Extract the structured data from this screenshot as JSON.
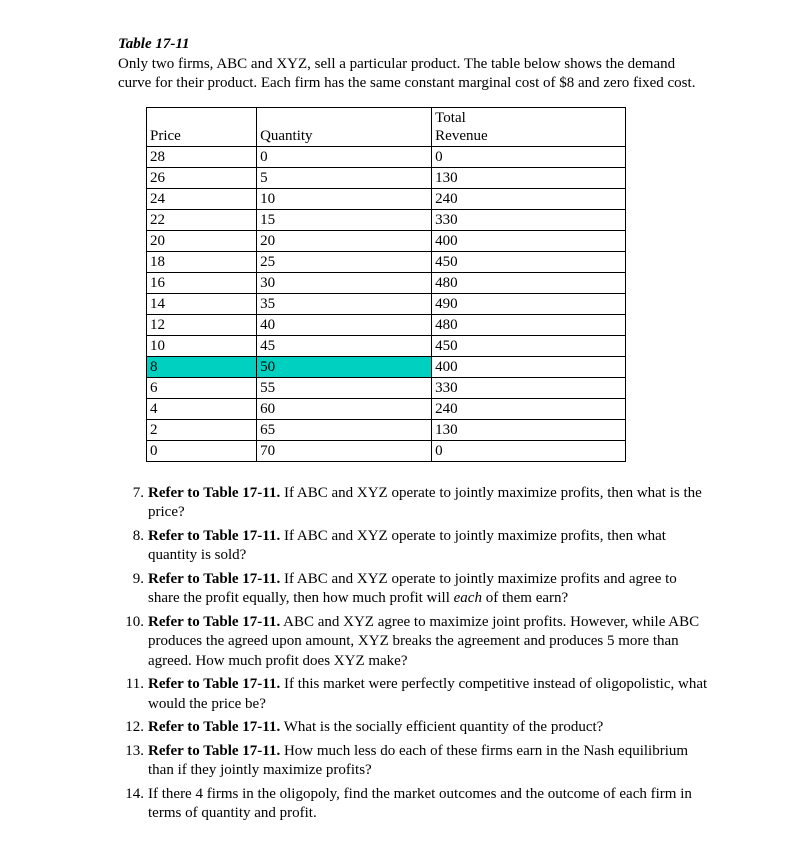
{
  "title": "Table 17-11",
  "intro": "Only two firms, ABC and XYZ, sell a particular product. The table below shows the demand curve for their product. Each firm has the same constant marginal cost of $8 and zero fixed cost.",
  "table": {
    "columns": [
      "Price",
      "Quantity",
      "Total Revenue"
    ],
    "header_price": "Price",
    "header_qty": "Quantity",
    "header_rev_line1": "Total",
    "header_rev_line2": "Revenue",
    "rows": [
      {
        "price": "28",
        "qty": "0",
        "rev": "0",
        "hl": false
      },
      {
        "price": "26",
        "qty": "5",
        "rev": "130",
        "hl": false
      },
      {
        "price": "24",
        "qty": "10",
        "rev": "240",
        "hl": false
      },
      {
        "price": "22",
        "qty": "15",
        "rev": "330",
        "hl": false
      },
      {
        "price": "20",
        "qty": "20",
        "rev": "400",
        "hl": false
      },
      {
        "price": "18",
        "qty": "25",
        "rev": "450",
        "hl": false
      },
      {
        "price": "16",
        "qty": "30",
        "rev": "480",
        "hl": false
      },
      {
        "price": "14",
        "qty": "35",
        "rev": "490",
        "hl": false
      },
      {
        "price": "12",
        "qty": "40",
        "rev": "480",
        "hl": false
      },
      {
        "price": "10",
        "qty": "45",
        "rev": "450",
        "hl": false
      },
      {
        "price": "8",
        "qty": "50",
        "rev": "400",
        "hl": true
      },
      {
        "price": "6",
        "qty": "55",
        "rev": "330",
        "hl": false
      },
      {
        "price": "4",
        "qty": "60",
        "rev": "240",
        "hl": false
      },
      {
        "price": "2",
        "qty": "65",
        "rev": "130",
        "hl": false
      },
      {
        "price": "0",
        "qty": "70",
        "rev": "0",
        "hl": false
      }
    ],
    "highlight_color": "#00d0c0",
    "border_color": "#000000"
  },
  "ref_label": "Refer to Table 17-11.",
  "questions": {
    "q7": {
      "num": "7.",
      "text": " If ABC and XYZ operate to jointly maximize profits, then what is the price?"
    },
    "q8": {
      "num": "8.",
      "text": " If ABC and XYZ operate to jointly maximize profits, then what quantity is sold?"
    },
    "q9": {
      "num": "9.",
      "pre": " If ABC and XYZ operate to jointly maximize profits and agree to share the profit equally, then how much profit will ",
      "ital": "each",
      "post": " of them earn?"
    },
    "q10": {
      "num": "10.",
      "text": " ABC and XYZ agree to maximize joint profits. However, while ABC produces the agreed upon amount, XYZ breaks the agreement and produces 5 more than agreed. How much profit does XYZ make?"
    },
    "q11": {
      "num": "11.",
      "text": " If this market were perfectly competitive instead of oligopolistic, what would the price be?"
    },
    "q12": {
      "num": "12.",
      "text": " What is the socially efficient quantity of the product?"
    },
    "q13": {
      "num": "13.",
      "text": " How much less do each of these firms earn in the Nash equilibrium than if they jointly maximize profits?"
    },
    "q14": {
      "num": "14.",
      "text": "If there 4 firms in the oligopoly, find the market outcomes and the outcome of each firm in terms of quantity and profit."
    }
  }
}
